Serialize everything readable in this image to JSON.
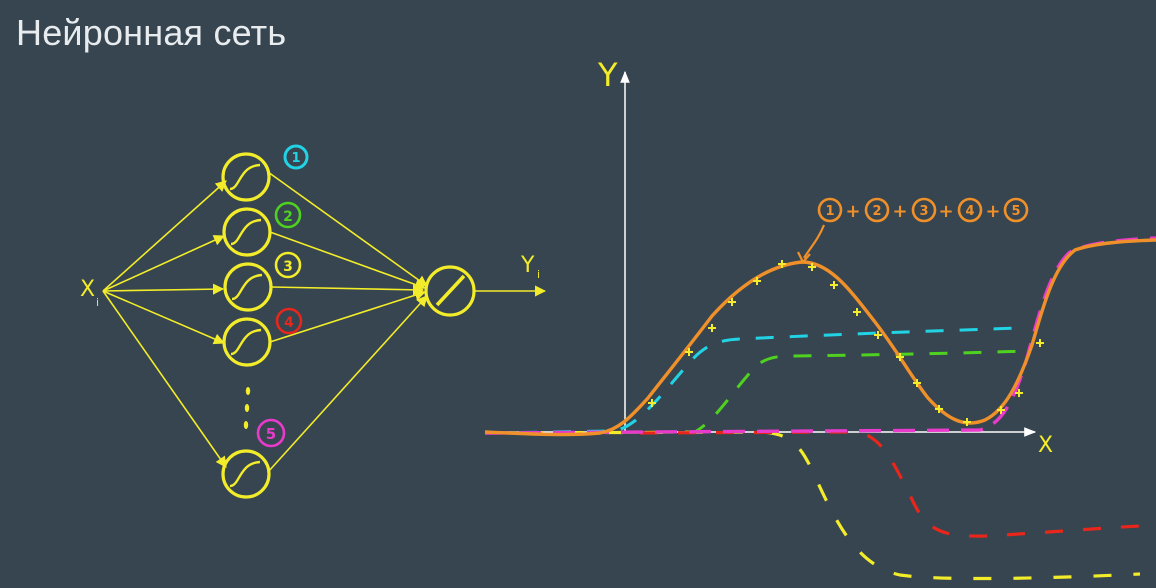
{
  "title": "Нейронная сеть",
  "network": {
    "input_label": "X",
    "input_subscript": "i",
    "output_label": "Y",
    "output_subscript": "i",
    "neuron_numbers": [
      "1",
      "2",
      "3",
      "4",
      "5"
    ]
  },
  "plot": {
    "y_axis_label": "Y",
    "x_axis_label": "X",
    "sum_annotation": [
      "1",
      "+",
      "2",
      "+",
      "3",
      "+",
      "4",
      "+",
      "5"
    ]
  },
  "colors": {
    "background": "#36454f",
    "network": "#f3ec2a",
    "neuron1": "#22d3e6",
    "neuron2": "#4fd21f",
    "neuron3": "#f3ec2a",
    "neuron4": "#e8261c",
    "neuron5": "#e83acb",
    "sum": "#f0902a",
    "axes": "#ffffff"
  }
}
